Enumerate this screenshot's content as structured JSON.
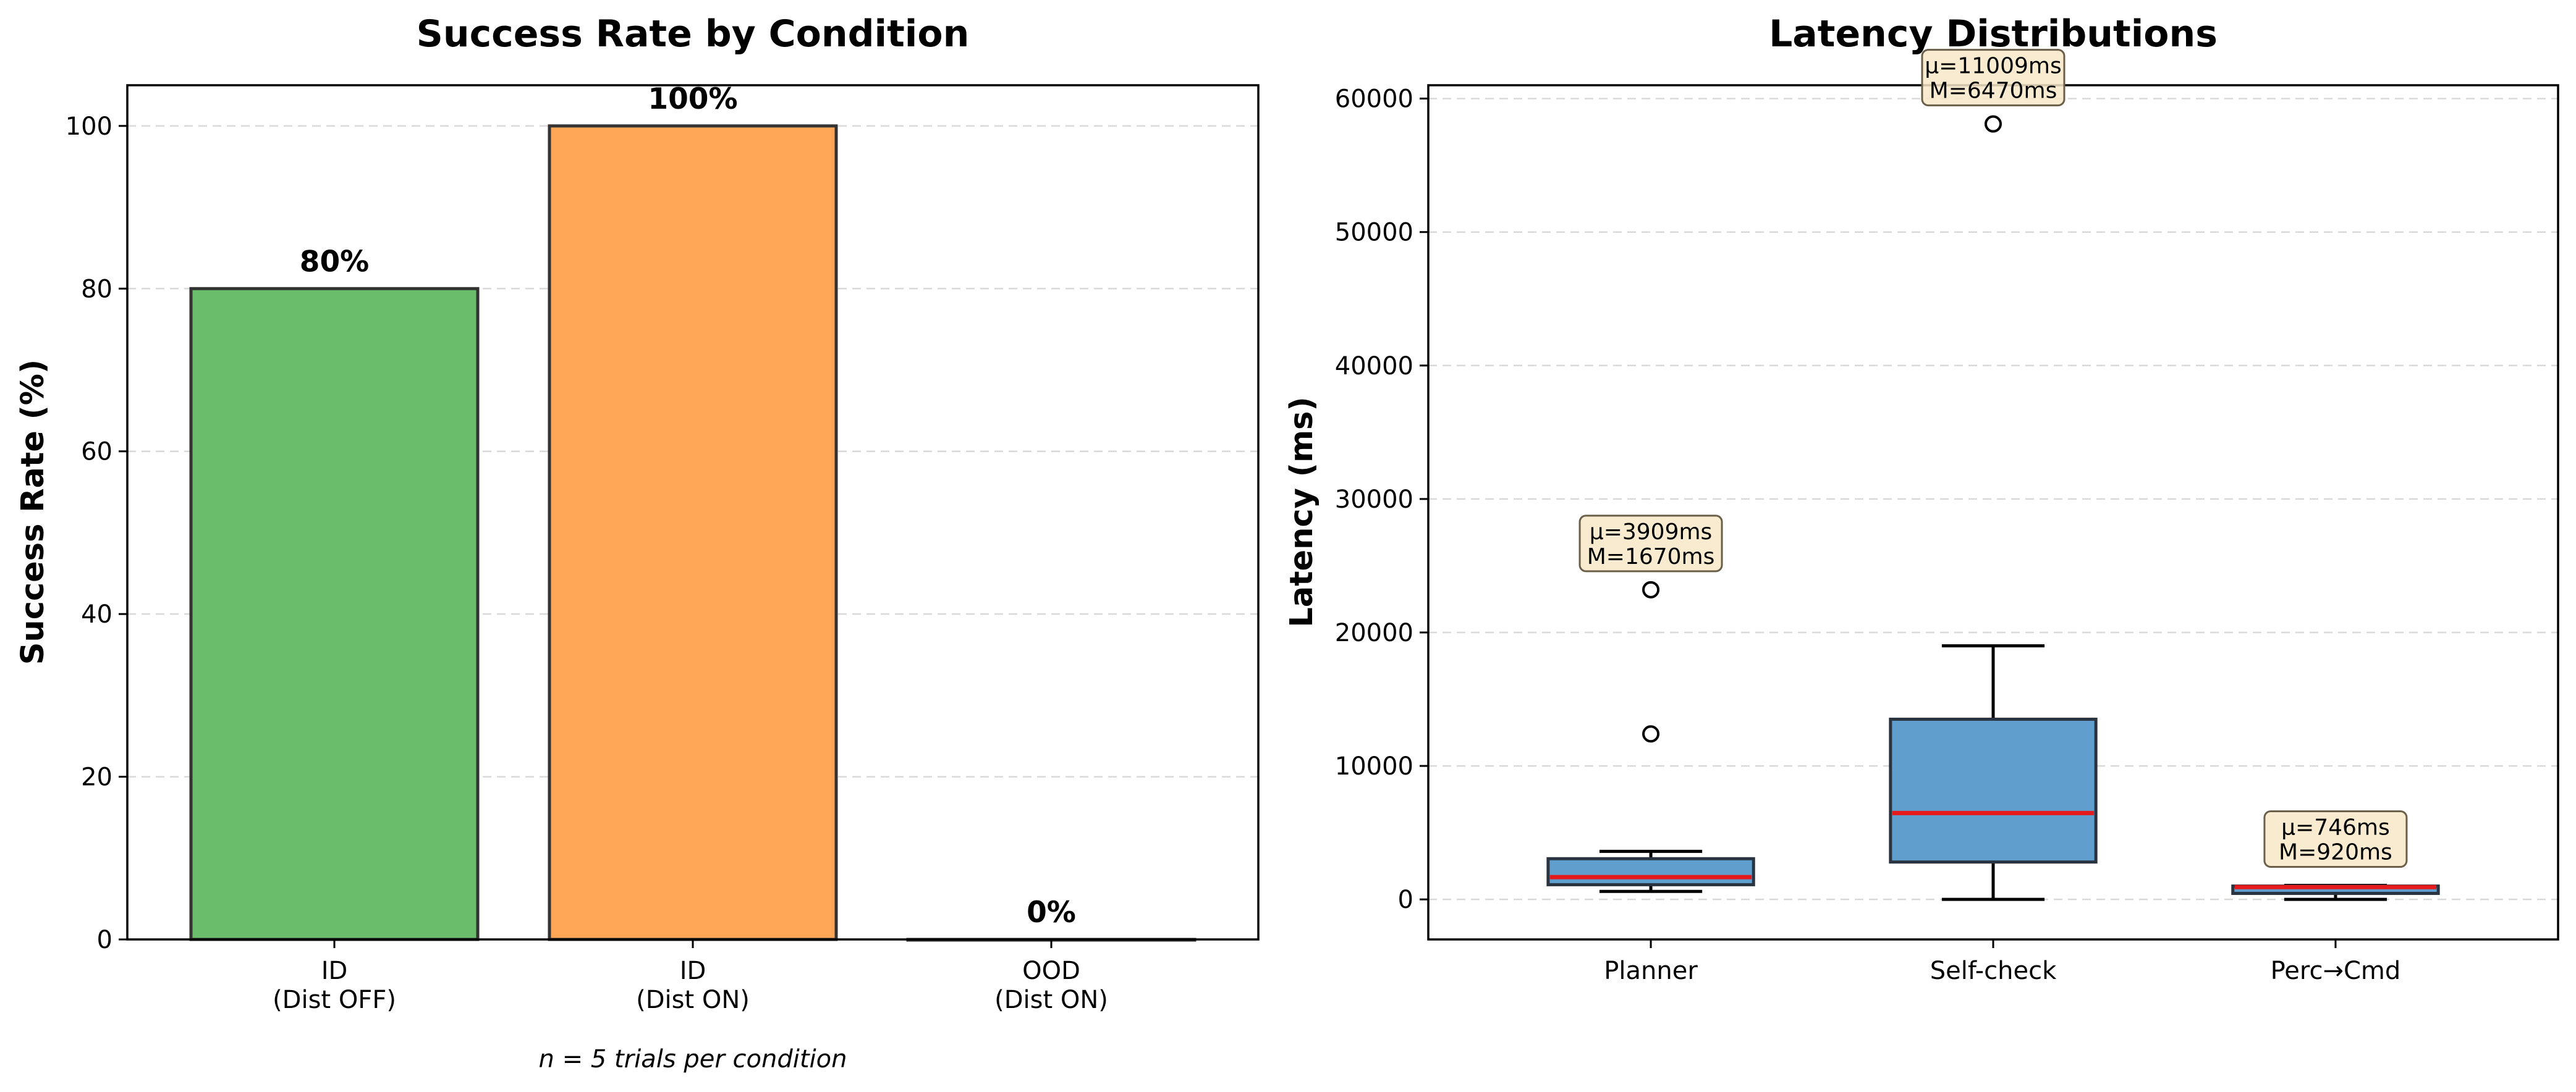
{
  "chart_data": [
    {
      "type": "bar",
      "title": "Success Rate by Condition",
      "ylabel": "Success Rate (%)",
      "xlabel": "",
      "ylim": [
        0,
        105
      ],
      "yticks": [
        0,
        20,
        40,
        60,
        80,
        100
      ],
      "categories": [
        [
          "ID",
          "(Dist OFF)"
        ],
        [
          "ID",
          "(Dist ON)"
        ],
        [
          "OOD",
          "(Dist ON)"
        ]
      ],
      "values": [
        80,
        100,
        0
      ],
      "value_labels": [
        "80%",
        "100%",
        "0%"
      ],
      "colors": [
        "#6abd6a",
        "#ffa657",
        "#9ecae1"
      ],
      "note": "n = 5 trials per condition",
      "grid": "y-dashed"
    },
    {
      "type": "box",
      "title": "Latency Distributions",
      "ylabel": "Latency (ms)",
      "xlabel": "",
      "ylim": [
        -3000,
        61000
      ],
      "yticks": [
        0,
        10000,
        20000,
        30000,
        40000,
        50000,
        60000
      ],
      "categories": [
        "Planner",
        "Self-check",
        "Perc→Cmd"
      ],
      "box_color": "#5f9ecd",
      "median_color": "#e41a1c",
      "boxes": [
        {
          "whislo": 600,
          "q1": 1100,
          "med": 1670,
          "q3": 3050,
          "whishi": 3600,
          "fliers": [
            12400,
            23200
          ],
          "annotation": [
            "μ=3909ms",
            "M=1670ms"
          ]
        },
        {
          "whislo": 0,
          "q1": 2800,
          "med": 6470,
          "q3": 13500,
          "whishi": 19000,
          "fliers": [
            58100
          ],
          "annotation": [
            "μ=11009ms",
            "M=6470ms"
          ]
        },
        {
          "whislo": 0,
          "q1": 450,
          "med": 920,
          "q3": 1000,
          "whishi": 1050,
          "fliers": [],
          "annotation": [
            "μ=746ms",
            "M=920ms"
          ]
        }
      ],
      "grid": "y-dashed"
    }
  ]
}
